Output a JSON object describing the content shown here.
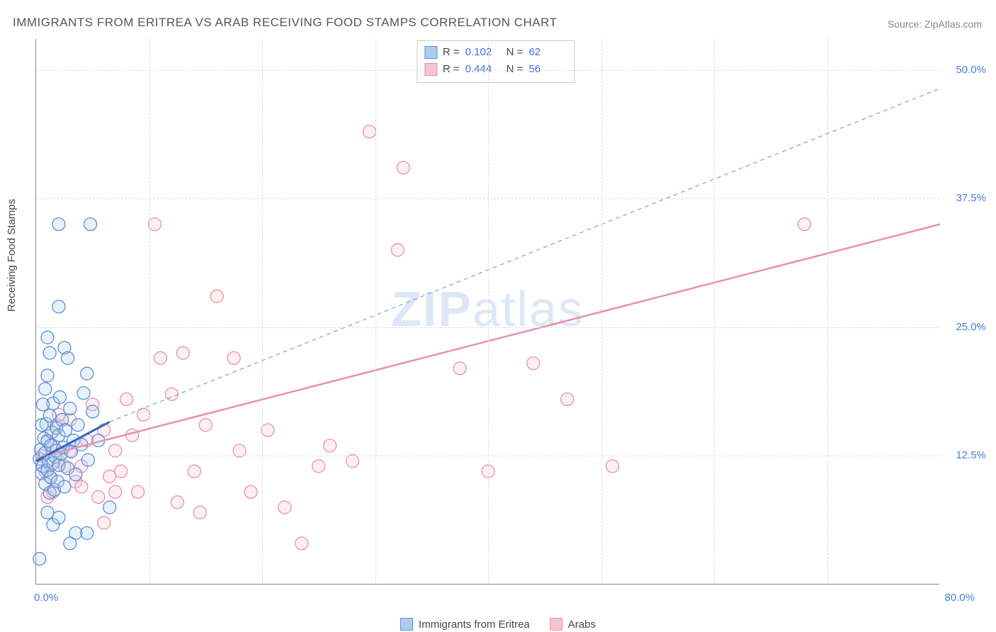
{
  "title": "IMMIGRANTS FROM ERITREA VS ARAB RECEIVING FOOD STAMPS CORRELATION CHART",
  "source_label": "Source: ZipAtlas.com",
  "watermark": {
    "bold": "ZIP",
    "rest": "atlas"
  },
  "y_axis_title": "Receiving Food Stamps",
  "plot": {
    "x_min": 0,
    "x_max": 80,
    "y_min": 0,
    "y_max": 53,
    "x_origin_label": "0.0%",
    "x_max_label": "80.0%",
    "y_ticks": [
      {
        "v": 12.5,
        "label": "12.5%"
      },
      {
        "v": 25.0,
        "label": "25.0%"
      },
      {
        "v": 37.5,
        "label": "37.5%"
      },
      {
        "v": 50.0,
        "label": "50.0%"
      }
    ],
    "x_grid_ticks": [
      10,
      20,
      30,
      40,
      50,
      60,
      70
    ],
    "background": "#ffffff",
    "grid_color": "#dddddd",
    "axis_color": "#888888",
    "label_color": "#4a7dd4",
    "marker_radius": 9,
    "marker_stroke_width": 1.3,
    "marker_opacity_fill": 0.28
  },
  "series": {
    "eritrea": {
      "legend_label": "Immigrants from Eritrea",
      "color_stroke": "#5a8fd6",
      "color_fill": "#aeccf0",
      "stats": {
        "R": "0.102",
        "N": "62"
      },
      "trend": {
        "x1": 0,
        "y1": 12.0,
        "x2": 6.5,
        "y2": 15.8,
        "width": 3,
        "dash": "none"
      },
      "extrapolation": {
        "x1": 6.5,
        "y1": 15.8,
        "x2": 80,
        "y2": 48.2,
        "width": 1.2,
        "dash": "6,5"
      },
      "points": [
        [
          0.3,
          12.2
        ],
        [
          0.4,
          13.1
        ],
        [
          0.5,
          10.8
        ],
        [
          0.6,
          11.5
        ],
        [
          0.7,
          14.2
        ],
        [
          0.8,
          9.8
        ],
        [
          0.8,
          12.8
        ],
        [
          0.9,
          15.6
        ],
        [
          1.0,
          11.1
        ],
        [
          1.0,
          13.9
        ],
        [
          1.1,
          12.0
        ],
        [
          1.2,
          8.9
        ],
        [
          1.2,
          16.4
        ],
        [
          1.3,
          10.4
        ],
        [
          1.3,
          13.5
        ],
        [
          1.4,
          14.8
        ],
        [
          1.5,
          11.8
        ],
        [
          1.5,
          17.6
        ],
        [
          1.6,
          9.2
        ],
        [
          1.7,
          12.4
        ],
        [
          1.8,
          15.2
        ],
        [
          1.8,
          13.0
        ],
        [
          1.9,
          10.0
        ],
        [
          2.0,
          14.5
        ],
        [
          2.0,
          11.6
        ],
        [
          2.1,
          18.2
        ],
        [
          2.2,
          12.7
        ],
        [
          2.3,
          16.0
        ],
        [
          2.4,
          13.3
        ],
        [
          2.5,
          9.5
        ],
        [
          2.6,
          15.0
        ],
        [
          2.8,
          11.3
        ],
        [
          3.0,
          17.1
        ],
        [
          3.1,
          12.9
        ],
        [
          3.3,
          14.0
        ],
        [
          3.5,
          10.7
        ],
        [
          3.7,
          15.5
        ],
        [
          4.0,
          13.6
        ],
        [
          4.2,
          18.6
        ],
        [
          4.6,
          12.1
        ],
        [
          5.0,
          16.8
        ],
        [
          1.0,
          7.0
        ],
        [
          1.5,
          5.8
        ],
        [
          2.0,
          6.5
        ],
        [
          2.0,
          27.0
        ],
        [
          2.5,
          23.0
        ],
        [
          2.8,
          22.0
        ],
        [
          3.5,
          5.0
        ],
        [
          4.5,
          5.0
        ],
        [
          2.0,
          35.0
        ],
        [
          4.5,
          20.5
        ],
        [
          0.6,
          17.5
        ],
        [
          0.8,
          19.0
        ],
        [
          1.0,
          20.3
        ],
        [
          1.2,
          22.5
        ],
        [
          1.0,
          24.0
        ],
        [
          4.8,
          35.0
        ],
        [
          6.5,
          7.5
        ],
        [
          3.0,
          4.0
        ],
        [
          5.5,
          14.0
        ],
        [
          0.5,
          15.5
        ],
        [
          0.3,
          2.5
        ]
      ]
    },
    "arabs": {
      "legend_label": "Arabs",
      "color_stroke": "#e891a8",
      "color_fill": "#f7c4d1",
      "stats": {
        "R": "0.444",
        "N": "56"
      },
      "trend": {
        "x1": 0,
        "y1": 12.3,
        "x2": 80,
        "y2": 35.0,
        "width": 2.5,
        "dash": "none"
      },
      "extrapolation": null,
      "points": [
        [
          0.5,
          12.5
        ],
        [
          0.8,
          11.0
        ],
        [
          1.0,
          14.0
        ],
        [
          1.2,
          10.5
        ],
        [
          1.5,
          13.5
        ],
        [
          1.8,
          15.5
        ],
        [
          2.0,
          12.0
        ],
        [
          2.5,
          11.5
        ],
        [
          3.0,
          16.0
        ],
        [
          3.5,
          10.0
        ],
        [
          4.0,
          9.5
        ],
        [
          4.5,
          14.0
        ],
        [
          5.0,
          17.5
        ],
        [
          5.5,
          8.5
        ],
        [
          6.0,
          15.0
        ],
        [
          6.5,
          10.5
        ],
        [
          7.0,
          13.0
        ],
        [
          7.5,
          11.0
        ],
        [
          8.0,
          18.0
        ],
        [
          8.5,
          14.5
        ],
        [
          9.0,
          9.0
        ],
        [
          9.5,
          16.5
        ],
        [
          10.5,
          35.0
        ],
        [
          11.0,
          22.0
        ],
        [
          12.0,
          18.5
        ],
        [
          12.5,
          8.0
        ],
        [
          13.0,
          22.5
        ],
        [
          14.0,
          11.0
        ],
        [
          15.0,
          15.5
        ],
        [
          14.5,
          7.0
        ],
        [
          16.0,
          28.0
        ],
        [
          17.5,
          22.0
        ],
        [
          18.0,
          13.0
        ],
        [
          19.0,
          9.0
        ],
        [
          20.5,
          15.0
        ],
        [
          22.0,
          7.5
        ],
        [
          23.5,
          4.0
        ],
        [
          25.0,
          11.5
        ],
        [
          26.0,
          13.5
        ],
        [
          28.0,
          12.0
        ],
        [
          29.5,
          44.0
        ],
        [
          32.0,
          32.5
        ],
        [
          32.5,
          40.5
        ],
        [
          37.5,
          21.0
        ],
        [
          40.0,
          11.0
        ],
        [
          44.0,
          21.5
        ],
        [
          47.0,
          18.0
        ],
        [
          51.0,
          11.5
        ],
        [
          68.0,
          35.0
        ],
        [
          2.0,
          16.5
        ],
        [
          3.0,
          13.0
        ],
        [
          1.0,
          8.5
        ],
        [
          1.5,
          9.0
        ],
        [
          4.0,
          11.5
        ],
        [
          6.0,
          6.0
        ],
        [
          7.0,
          9.0
        ]
      ]
    }
  },
  "bottom_legend": [
    {
      "key": "eritrea"
    },
    {
      "key": "arabs"
    }
  ],
  "stats_box_labels": {
    "R": "R = ",
    "N": "N = "
  }
}
